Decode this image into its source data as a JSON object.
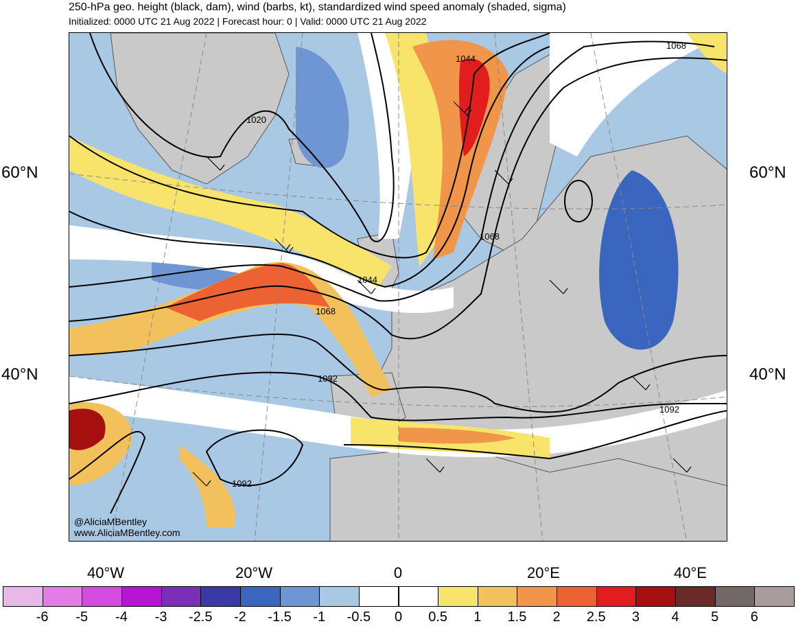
{
  "header": {
    "title": "250-hPa geo. height (black, dam), wind (barbs, kt), standardized wind speed anomaly (shaded, sigma)",
    "subtitle": "Initialized: 0000 UTC 21 Aug 2022 | Forecast hour: 0 | Valid: 0000 UTC 21 Aug 2022"
  },
  "map": {
    "lat_labels": [
      "60°N",
      "40°N"
    ],
    "lon_labels": [
      "40°W",
      "20°W",
      "0",
      "20°E",
      "40°E"
    ],
    "contour_labels": [
      "1020",
      "1044",
      "1068",
      "1068",
      "1044",
      "1068",
      "1092",
      "1092",
      "1092"
    ],
    "credit_handle": "@AliciaMBentley",
    "credit_site": "www.AliciaMBentley.com"
  },
  "colorbar": {
    "labels": [
      "-6",
      "-5",
      "-4",
      "-3",
      "-2.5",
      "-2",
      "-1.5",
      "-1",
      "-0.5",
      "0",
      "0.5",
      "1",
      "1.5",
      "2",
      "2.5",
      "3",
      "4",
      "5",
      "6"
    ],
    "colors": [
      "#e7b8e8",
      "#e27de6",
      "#d24ce0",
      "#b515d2",
      "#7b2fb8",
      "#3a3aa4",
      "#3b66c0",
      "#6e96d4",
      "#a9c8e4",
      "#ffffff",
      "#ffffff",
      "#f9e46b",
      "#f3c15c",
      "#f0954a",
      "#ec6232",
      "#e21d1d",
      "#a50f0f",
      "#6b2a2a",
      "#736a68",
      "#a89c9c"
    ]
  },
  "colors": {
    "land": "#c9c9c9",
    "coast": "#555555",
    "contour": "#000000"
  }
}
